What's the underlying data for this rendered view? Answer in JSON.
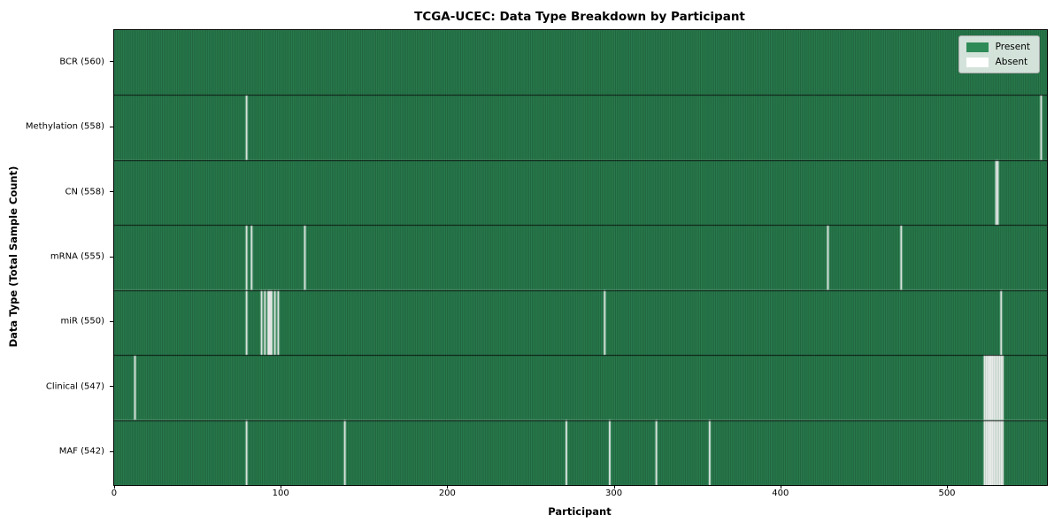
{
  "title": "TCGA-UCEC: Data Type Breakdown by Participant",
  "xlabel": "Participant",
  "ylabel": "Data Type (Total Sample Count)",
  "legend": {
    "present_label": "Present",
    "absent_label": "Absent"
  },
  "colors": {
    "present": "#2E8B57",
    "absent": "#FFFFFF",
    "bar_edge_on_green": "rgba(0,0,0,0.5)",
    "bar_edge_on_white": "rgba(0,0,0,0.22)",
    "row_separator": "rgba(0,0,0,0.85)"
  },
  "chart_data": {
    "type": "heatmap",
    "title": "TCGA-UCEC: Data Type Breakdown by Participant",
    "xlabel": "Participant",
    "ylabel": "Data Type (Total Sample Count)",
    "legend": [
      "Present",
      "Absent"
    ],
    "legend_position": "upper right",
    "n_participants": 560,
    "xlim": [
      -0.5,
      559.5
    ],
    "x_ticks": [
      0,
      100,
      200,
      300,
      400,
      500
    ],
    "rows": [
      {
        "name": "BCR",
        "label": "BCR (560)",
        "present_count": 560,
        "absent_indices": []
      },
      {
        "name": "Methylation",
        "label": "Methylation (558)",
        "present_count": 558,
        "absent_indices": [
          79,
          556
        ]
      },
      {
        "name": "CN",
        "label": "CN (558)",
        "present_count": 558,
        "absent_indices": [
          529,
          530
        ]
      },
      {
        "name": "mRNA",
        "label": "mRNA (555)",
        "present_count": 555,
        "absent_indices": [
          79,
          82,
          114,
          428,
          472
        ]
      },
      {
        "name": "miR",
        "label": "miR (550)",
        "present_count": 550,
        "absent_indices": [
          79,
          88,
          90,
          92,
          93,
          94,
          96,
          98,
          294,
          532
        ]
      },
      {
        "name": "Clinical",
        "label": "Clinical (547)",
        "present_count": 547,
        "absent_indices": [
          12,
          522,
          523,
          524,
          525,
          526,
          527,
          528,
          529,
          530,
          531,
          532,
          533
        ]
      },
      {
        "name": "MAF",
        "label": "MAF (542)",
        "present_count": 542,
        "absent_indices": [
          79,
          138,
          271,
          297,
          325,
          357,
          522,
          523,
          524,
          525,
          526,
          527,
          528,
          529,
          530,
          531,
          532,
          533
        ]
      }
    ]
  }
}
